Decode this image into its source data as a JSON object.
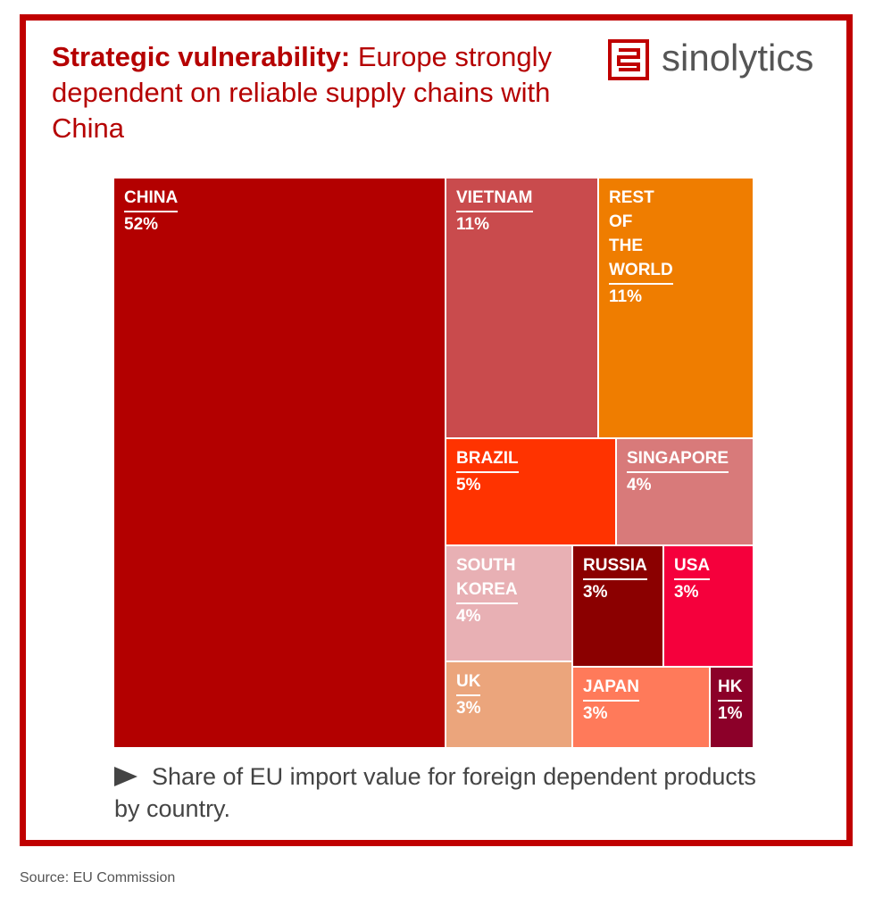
{
  "title": {
    "bold": "Strategic vulnerability:",
    "rest": " Europe strongly dependent on reliable supply chains with China"
  },
  "logo": {
    "text": "sinolytics"
  },
  "caption": "Share of EU import value for foreign dependent products by country.",
  "source": "Source: EU Commission",
  "colors": {
    "frame": "#c00000",
    "title": "#b50000"
  },
  "chart_data": {
    "type": "treemap",
    "unit": "%",
    "items": [
      {
        "name": "CHINA",
        "value": 52,
        "label": "52%",
        "color": "#b30000"
      },
      {
        "name": "VIETNAM",
        "value": 11,
        "label": "11%",
        "color": "#c94b4d"
      },
      {
        "name": "REST\nOF\nTHE\nWORLD",
        "value": 11,
        "label": "11%",
        "color": "#ef7d00"
      },
      {
        "name": "BRAZIL",
        "value": 5,
        "label": "5%",
        "color": "#ff3300"
      },
      {
        "name": "SINGAPORE",
        "value": 4,
        "label": "4%",
        "color": "#d87a7a"
      },
      {
        "name": "SOUTH\nKOREA",
        "value": 4,
        "label": "4%",
        "color": "#e8b0b4"
      },
      {
        "name": "RUSSIA",
        "value": 3,
        "label": "3%",
        "color": "#8b0000"
      },
      {
        "name": "USA",
        "value": 3,
        "label": "3%",
        "color": "#f5003c"
      },
      {
        "name": "UK",
        "value": 3,
        "label": "3%",
        "color": "#eba57c"
      },
      {
        "name": "JAPAN",
        "value": 3,
        "label": "3%",
        "color": "#ff7a5a"
      },
      {
        "name": "HK",
        "value": 1,
        "label": "1%",
        "color": "#8c0029"
      }
    ]
  }
}
